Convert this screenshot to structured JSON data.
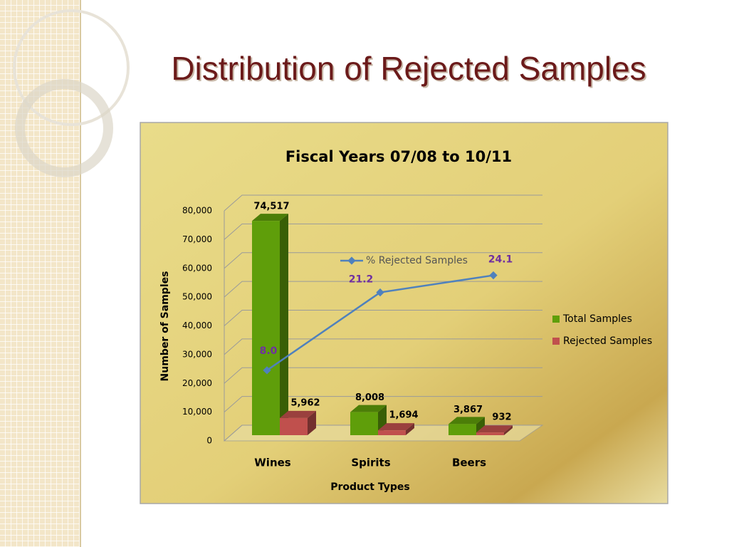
{
  "slide": {
    "title": "Distribution of Rejected Samples"
  },
  "chart_data": {
    "type": "bar",
    "title": "Fiscal Years 07/08 to 10/11",
    "x_label": "Product Types",
    "y_label": "Number of Samples",
    "categories": [
      "Wines",
      "Spirits",
      "Beers"
    ],
    "series": [
      {
        "name": "Total Samples",
        "color": "#5f9e0a",
        "values": [
          74517,
          8008,
          3867
        ],
        "value_labels": [
          "74,517",
          "8,008",
          "3,867"
        ]
      },
      {
        "name": "Rejected Samples",
        "color": "#c0504d",
        "values": [
          5962,
          1694,
          932
        ],
        "value_labels": [
          "5,962",
          "1,694",
          "932"
        ]
      },
      {
        "name": "% Rejected Samples",
        "type": "line",
        "axis": "y2",
        "color": "#4f81bd",
        "values": [
          8.0,
          21.2,
          24.1
        ],
        "value_labels": [
          "8.0",
          "21.2",
          "24.1"
        ]
      }
    ],
    "ylim": [
      0,
      80000
    ],
    "yticks": [
      0,
      {
        "value": 10000,
        "label": "10,000"
      },
      {
        "value": 20000,
        "label": "20,000"
      },
      {
        "value": 30000,
        "label": "30,000"
      },
      {
        "value": 40000,
        "label": "40,000"
      },
      {
        "value": 50000,
        "label": "50,000"
      },
      {
        "value": 60000,
        "label": "60,000"
      },
      {
        "value": 70000,
        "label": "70,000"
      },
      {
        "value": 80000,
        "label": "80,000"
      }
    ],
    "y2lim": [
      -3,
      36
    ],
    "grid": true
  }
}
